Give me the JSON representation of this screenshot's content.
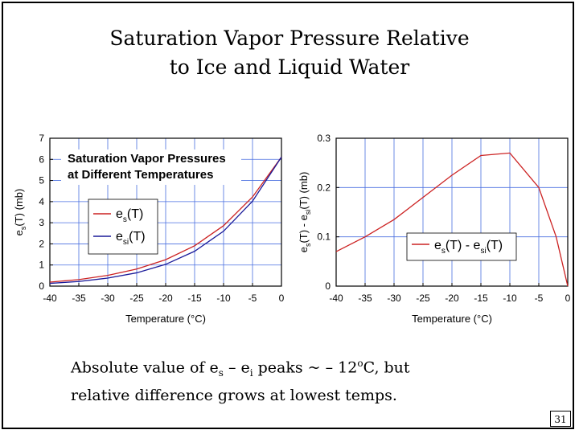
{
  "slide": {
    "title_line1": "Saturation Vapor Pressure Relative",
    "title_line2": "to Ice and Liquid Water",
    "caption_line1_a": "Absolute value of e",
    "caption_line1_sub1": "s",
    "caption_line1_b": " – e",
    "caption_line1_sub2": "i",
    "caption_line1_c": " peaks ~ – 12",
    "caption_line1_sup": "o",
    "caption_line1_d": "C, but",
    "caption_line2": "relative difference grows at lowest temps.",
    "page_number": "31"
  },
  "chart_data": [
    {
      "type": "line",
      "title": "Saturation Vapor Pressures at Different Temperatures",
      "title_line1": "Saturation Vapor Pressures",
      "title_line2": "at Different Temperatures",
      "xlabel": "Temperature (°C)",
      "ylabel": "e_s(T) (mb)",
      "ylabel_main": "e",
      "ylabel_sub": "s",
      "ylabel_rest": "(T) (mb)",
      "xlim": [
        -40,
        0
      ],
      "ylim": [
        0,
        7
      ],
      "xticks": [
        -40,
        -35,
        -30,
        -25,
        -20,
        -15,
        -10,
        -5,
        0
      ],
      "yticks": [
        0,
        1,
        2,
        3,
        4,
        5,
        6,
        7
      ],
      "grid": true,
      "legend_position": "center-left",
      "x": [
        -40,
        -35,
        -30,
        -25,
        -20,
        -15,
        -10,
        -5,
        0
      ],
      "series": [
        {
          "name": "es(T)",
          "name_main": "e",
          "name_sub": "s",
          "name_rest": "(T)",
          "color": "#cc2222",
          "values": [
            0.19,
            0.31,
            0.51,
            0.81,
            1.25,
            1.91,
            2.86,
            4.22,
            6.11
          ]
        },
        {
          "name": "esi(T)",
          "name_main": "e",
          "name_sub": "si",
          "name_rest": "(T)",
          "color": "#1a1a99",
          "values": [
            0.13,
            0.22,
            0.38,
            0.63,
            1.03,
            1.65,
            2.6,
            4.02,
            6.11
          ]
        }
      ]
    },
    {
      "type": "line",
      "xlabel": "Temperature (°C)",
      "ylabel": "e_s(T) - e_si(T) (mb)",
      "xlim": [
        -40,
        0
      ],
      "ylim": [
        0,
        0.3
      ],
      "xticks": [
        -40,
        -35,
        -30,
        -25,
        -20,
        -15,
        -10,
        -5,
        0
      ],
      "yticks": [
        0,
        0.1,
        0.2,
        0.3
      ],
      "grid": true,
      "legend_position": "bottom-right",
      "x": [
        -40,
        -35,
        -30,
        -25,
        -20,
        -15,
        -10,
        -5,
        -2,
        0
      ],
      "series": [
        {
          "name": "es(T) - esi(T)",
          "color": "#cc2222",
          "values": [
            0.07,
            0.1,
            0.135,
            0.18,
            0.225,
            0.265,
            0.27,
            0.2,
            0.1,
            0.0
          ]
        }
      ]
    }
  ]
}
